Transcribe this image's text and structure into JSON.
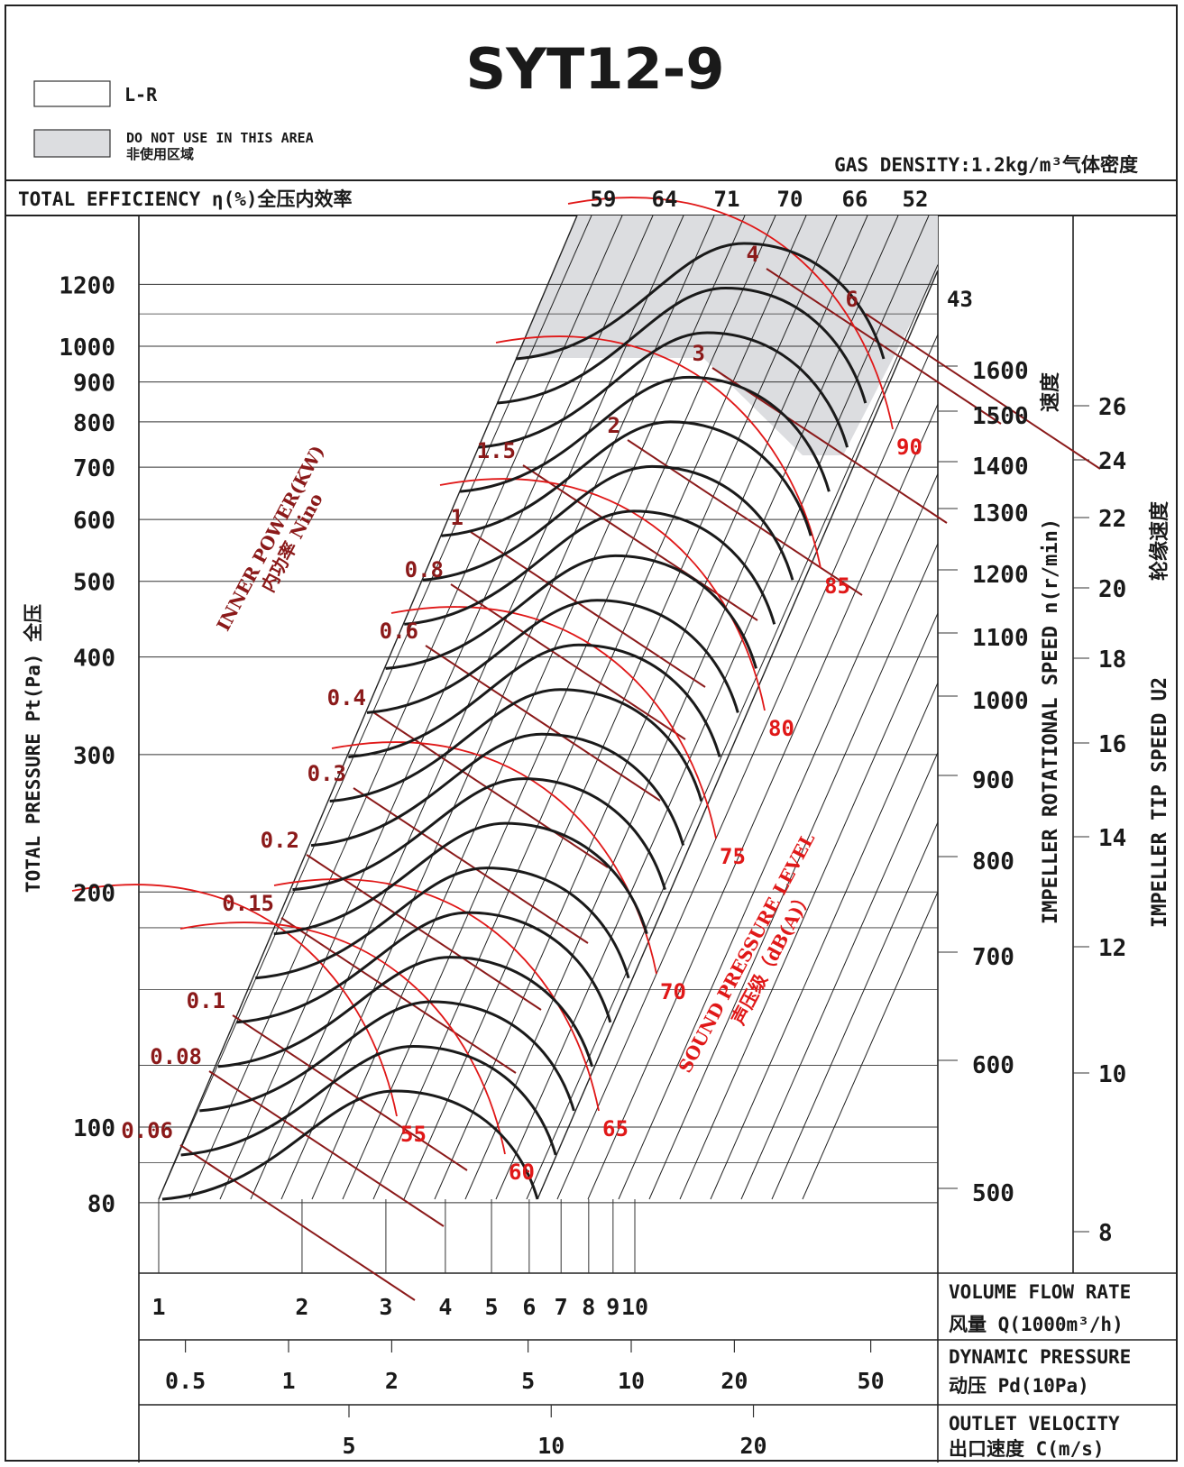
{
  "chart_data": {
    "type": "fan-performance-chart",
    "title": "SYT12-9",
    "legend": [
      {
        "label": "L-R",
        "color": "#ffffff"
      },
      {
        "label": "DO NOT USE IN THIS AREA",
        "label_cn": "非使用区域",
        "color": "#dcdde0"
      }
    ],
    "gas_density": "GAS DENSITY:1.2kg/m³气体密度",
    "efficiency_header": "TOTAL EFFICIENCY η(%)全压内效率",
    "efficiency_values": [
      "59",
      "64",
      "71",
      "70",
      "66",
      "52",
      "43"
    ],
    "ylabel": "TOTAL PRESSURE Pt(Pa) 全压",
    "ylabel_cn": "全压",
    "y_ticks": [
      "1200",
      "1000",
      "900",
      "800",
      "700",
      "600",
      "500",
      "400",
      "300",
      "200",
      "100",
      "80"
    ],
    "y_scale": "log",
    "x_scale": "log",
    "xlabel_flow": "VOLUME FLOW RATE",
    "xlabel_flow_cn": "风量 Q(1000m³/h)",
    "x_ticks_flow": [
      "1",
      "2",
      "3",
      "4",
      "5",
      "6",
      "7",
      "8",
      "9",
      "10"
    ],
    "xlabel_dynamic": "DYNAMIC PRESSURE",
    "xlabel_dynamic_cn": "动压 Pd(10Pa)",
    "x_ticks_dynamic": [
      "0.5",
      "1",
      "2",
      "5",
      "10",
      "20",
      "50"
    ],
    "xlabel_velocity": "OUTLET VELOCITY",
    "xlabel_velocity_cn": "出口速度 C(m/s)",
    "x_ticks_velocity": [
      "5",
      "10",
      "20"
    ],
    "speed_label": "IMPELLER ROTATIONAL SPEED n(r/min)",
    "speed_label_cn": "速度",
    "speed_ticks": [
      "1600",
      "1500",
      "1400",
      "1300",
      "1200",
      "1100",
      "1000",
      "900",
      "800",
      "700",
      "600",
      "500"
    ],
    "tip_label": "IMPELLER TIP SPEED U2",
    "tip_label_cn": "轮缘速度",
    "tip_ticks": [
      "26",
      "24",
      "22",
      "20",
      "18",
      "16",
      "14",
      "12",
      "10",
      "8"
    ],
    "power_label": "INNER POWER(KW)",
    "power_label_cn": "内功率 Nino",
    "power_values": [
      "6",
      "4",
      "3",
      "2",
      "1.5",
      "1",
      "0.8",
      "0.6",
      "0.4",
      "0.3",
      "0.2",
      "0.15",
      "0.1",
      "0.08",
      "0.06"
    ],
    "sound_label": "SOUND PRESSURE LEVEL",
    "sound_label_cn": "声压级（dB(A)）",
    "sound_values": [
      "90",
      "85",
      "80",
      "75",
      "70",
      "65",
      "60",
      "55"
    ],
    "colors": {
      "curve": "#1a1a1a",
      "power": "#8b1a1a",
      "sound": "#e01818",
      "shade": "#dcdde0",
      "grid": "#333333"
    }
  }
}
